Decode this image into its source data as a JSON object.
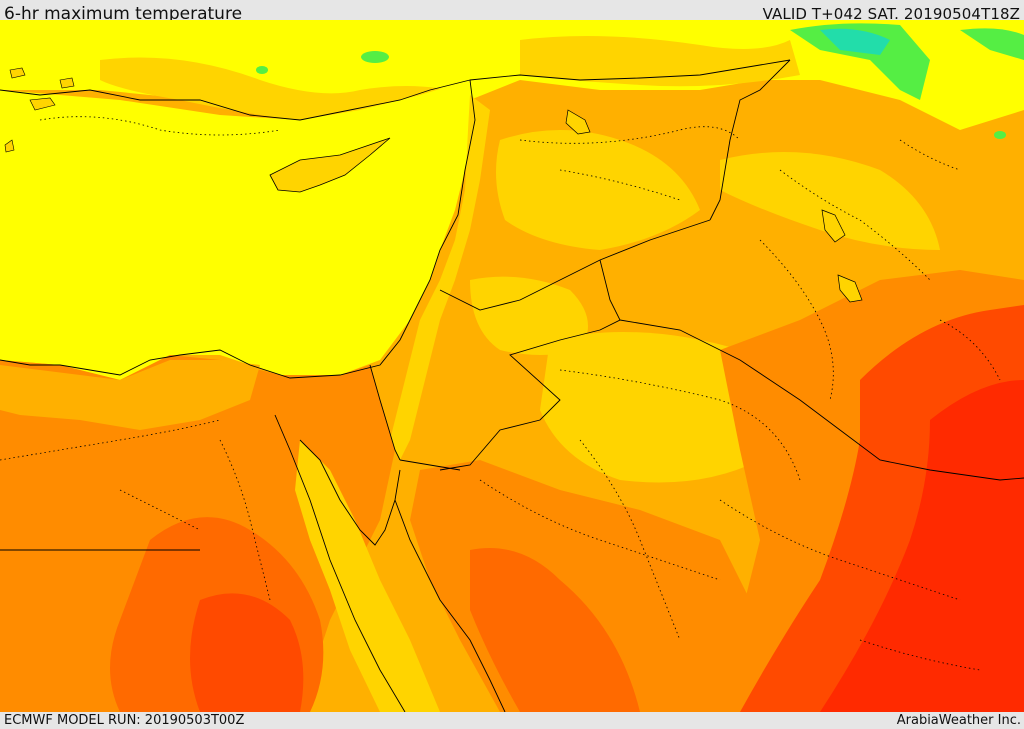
{
  "header": {
    "title": "6-hr maximum temperature",
    "valid": "VALID T+042 SAT. 20190504T18Z"
  },
  "footer": {
    "model_run": "ECMWF MODEL RUN: 20190503T00Z",
    "credit": "ArabiaWeather Inc."
  },
  "colors": {
    "sea": "#ffff00",
    "yellow_orange": "#ffd400",
    "light_orange": "#ffb000",
    "orange": "#ff8c00",
    "dark_orange": "#ff6a00",
    "red": "#ff3a00",
    "deep_red": "#ff2a00",
    "green": "#55ee44",
    "cyan": "#22ddaa",
    "border": "#000000"
  }
}
